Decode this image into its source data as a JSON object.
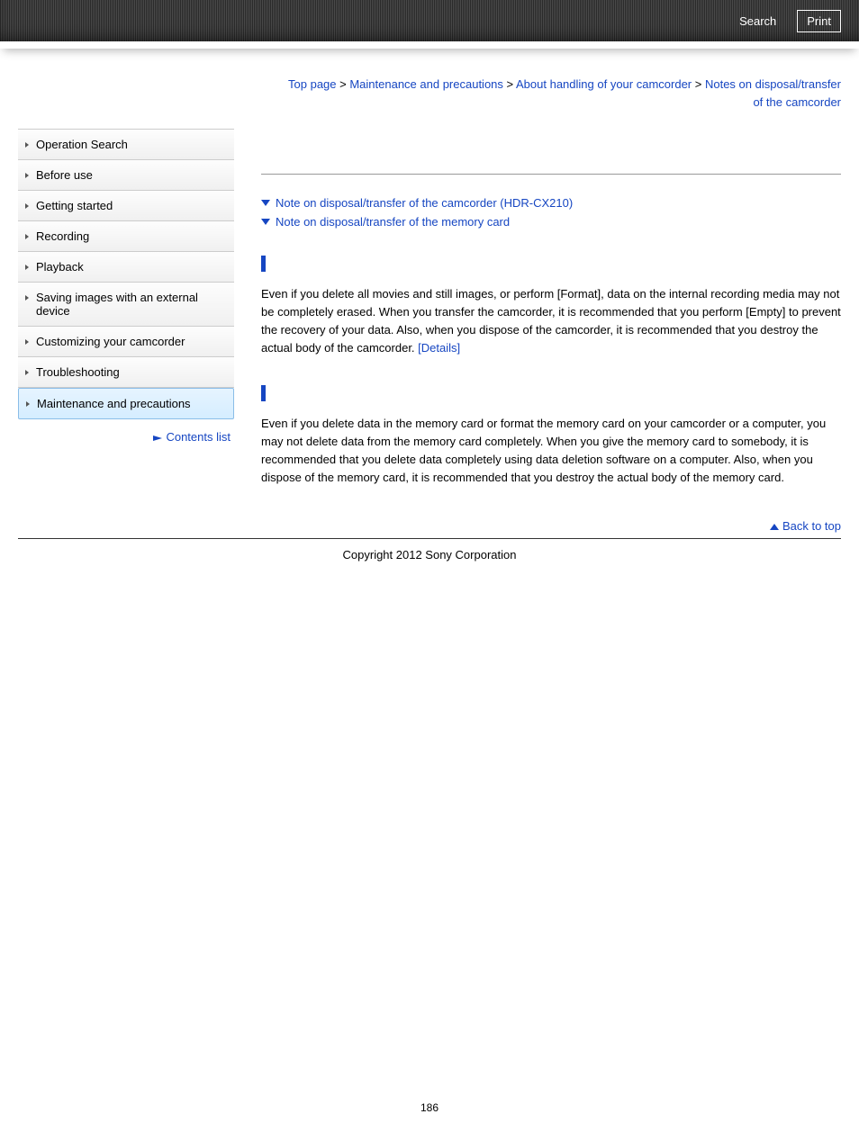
{
  "header": {
    "search_label": "Search",
    "print_label": "Print"
  },
  "breadcrumb": {
    "items": [
      "Top page",
      "Maintenance and precautions",
      "About handling of your camcorder"
    ],
    "sep": " > ",
    "current": "Notes on disposal/transfer of the camcorder"
  },
  "sidebar": {
    "items": [
      "Operation Search",
      "Before use",
      "Getting started",
      "Recording",
      "Playback",
      "Saving images with an external device",
      "Customizing your camcorder",
      "Troubleshooting",
      "Maintenance and precautions"
    ],
    "active_index": 8,
    "contents_link": "Contents list"
  },
  "anchors": {
    "a1": "Note on disposal/transfer of the camcorder (HDR-CX210)",
    "a2": "Note on disposal/transfer of the memory card"
  },
  "section1": {
    "text": "Even if you delete all movies and still images, or perform [Format], data on the internal recording media may not be completely erased. When you transfer the camcorder, it is recommended that you perform [Empty] to prevent the recovery of your data. Also, when you dispose of the camcorder, it is recommended that you destroy the actual body of the camcorder. ",
    "details": "[Details]"
  },
  "section2": {
    "text": "Even if you delete data in the memory card or format the memory card on your camcorder or a computer, you may not delete data from the memory card completely. When you give the memory card to somebody, it is recommended that you delete data completely using data deletion software on a computer. Also, when you dispose of the memory card, it is recommended that you destroy the actual body of the memory card."
  },
  "back_to_top": "Back to top",
  "copyright": "Copyright 2012 Sony Corporation",
  "page_number": "186",
  "colors": {
    "link": "#1646c2",
    "header_bg": "#3a3a3a",
    "active_bg": "#e6f4ff"
  }
}
